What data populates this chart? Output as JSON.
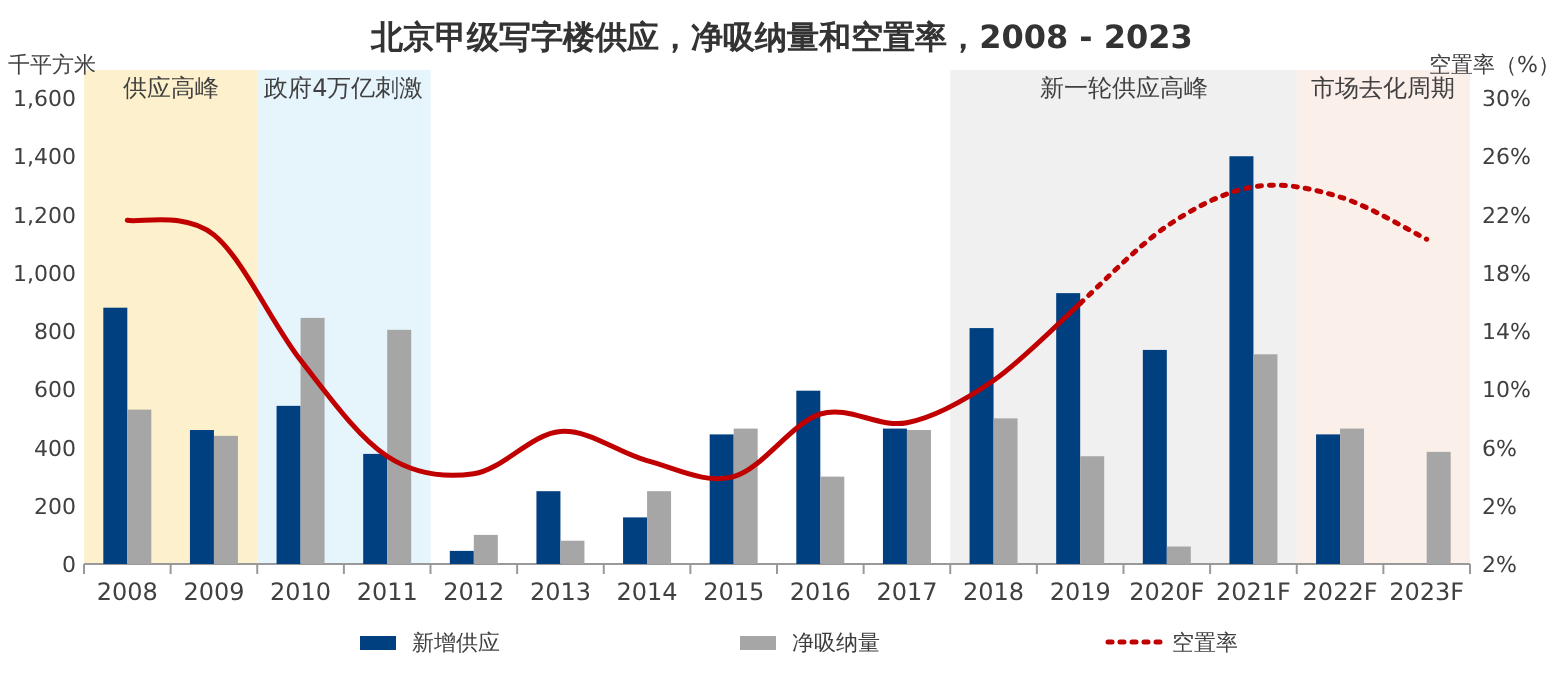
{
  "chart_data": {
    "type": "bar",
    "title": "北京甲级写字楼供应，净吸纳量和空置率，2008 - 2023",
    "ylabel": "千平方米",
    "y2label": "空置率（%）",
    "categories": [
      "2008",
      "2009",
      "2010",
      "2011",
      "2012",
      "2013",
      "2014",
      "2015",
      "2016",
      "2017",
      "2018",
      "2019",
      "2020F",
      "2021F",
      "2022F",
      "2023F"
    ],
    "ylim": [
      0,
      1600
    ],
    "yticks": [
      {
        "value": 0,
        "label": "0"
      },
      {
        "value": 200,
        "label": "200"
      },
      {
        "value": 400,
        "label": "400"
      },
      {
        "value": 600,
        "label": "600"
      },
      {
        "value": 800,
        "label": "800"
      },
      {
        "value": 1000,
        "label": "1,000"
      },
      {
        "value": 1200,
        "label": "1,200"
      },
      {
        "value": 1400,
        "label": "1,400"
      },
      {
        "value": 1600,
        "label": "1,600"
      }
    ],
    "y2lim": [
      -2,
      30
    ],
    "y2ticks": [
      {
        "value": -2,
        "label": "2%"
      },
      {
        "value": 2,
        "label": "2%"
      },
      {
        "value": 6,
        "label": "6%"
      },
      {
        "value": 10,
        "label": "10%"
      },
      {
        "value": 14,
        "label": "14%"
      },
      {
        "value": 18,
        "label": "18%"
      },
      {
        "value": 22,
        "label": "22%"
      },
      {
        "value": 26,
        "label": "26%"
      },
      {
        "value": 30,
        "label": "30%"
      }
    ],
    "series": [
      {
        "name": "新增供应",
        "color": "#004080",
        "values": [
          880,
          460,
          543,
          378,
          45,
          250,
          160,
          445,
          595,
          465,
          810,
          930,
          735,
          1400,
          445,
          null
        ]
      },
      {
        "name": "净吸纳量",
        "color": "#a6a6a6",
        "values": [
          530,
          440,
          845,
          804,
          100,
          80,
          250,
          465,
          300,
          460,
          500,
          370,
          60,
          720,
          465,
          385
        ]
      },
      {
        "type": "line",
        "axis": "y2",
        "color": "#c00000",
        "line_style": "solid",
        "values": [
          21.6,
          20.6,
          12.0,
          5.4,
          4.2,
          7.1,
          5.1,
          4.0,
          8.3,
          7.7,
          10.6,
          15.9,
          null,
          null,
          null,
          null
        ]
      },
      {
        "name": "空置率",
        "type": "line",
        "axis": "y2",
        "color": "#c00000",
        "line_style": "dotted",
        "values": [
          null,
          null,
          null,
          null,
          null,
          null,
          null,
          null,
          null,
          null,
          null,
          15.9,
          21.2,
          23.9,
          23.2,
          20.3
        ]
      }
    ],
    "bands": [
      {
        "axis": "x",
        "from": "2008",
        "to": "2009",
        "label": "供应高峰",
        "color": "#fdf0cc"
      },
      {
        "axis": "x",
        "from": "2010",
        "to": "2011",
        "label": "政府4万亿刺激",
        "color": "#e6f4fc"
      },
      {
        "axis": "x",
        "from": "2018",
        "to": "2021F",
        "label": "新一轮供应高峰",
        "color": "#f0f0f0"
      },
      {
        "axis": "x",
        "from": "2022F",
        "to": "2023F",
        "label": "市场去化周期",
        "color": "#fbefea"
      }
    ],
    "legend": "bottom"
  }
}
